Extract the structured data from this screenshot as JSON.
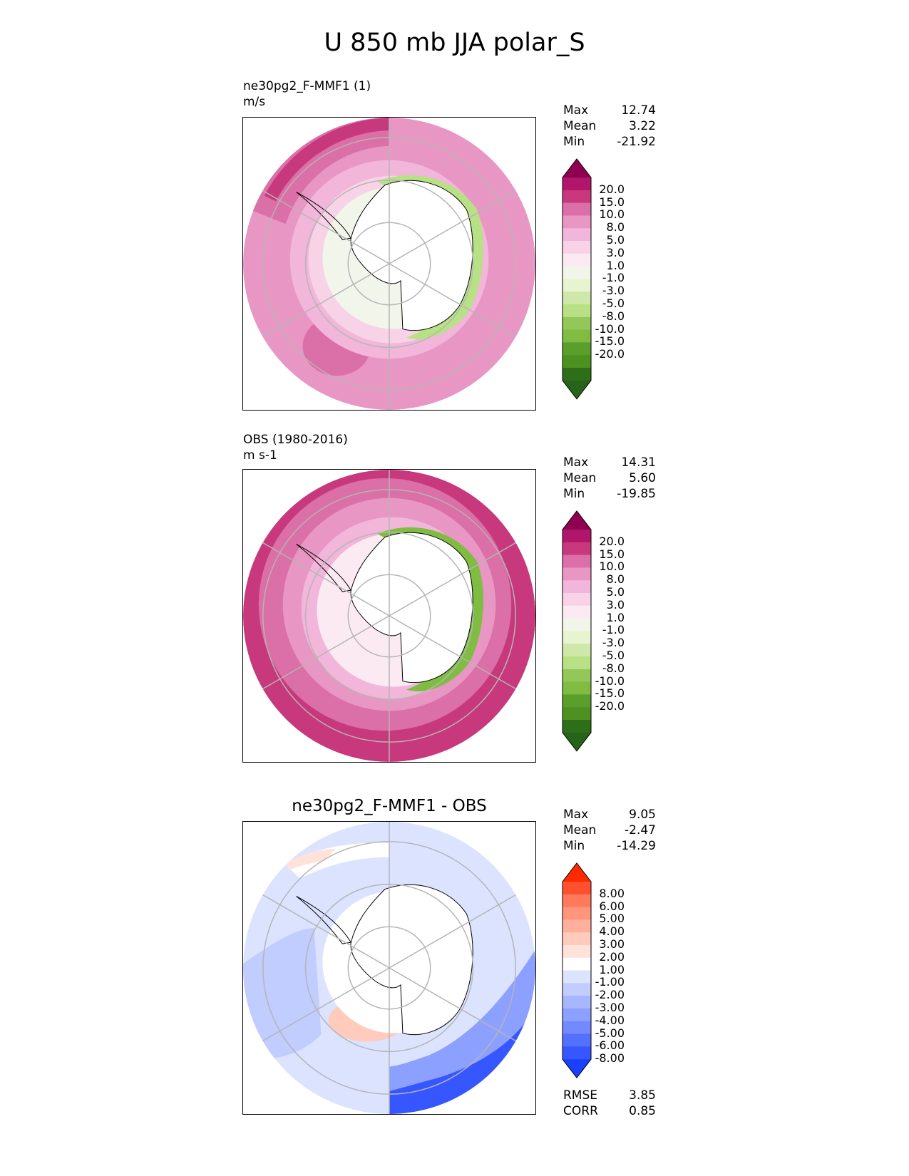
{
  "figure_title": "U 850 mb JJA polar_S",
  "panels": {
    "test": {
      "name": "ne30pg2_F-MMF1 (1)",
      "units": "m/s",
      "stats": {
        "max_label": "Max",
        "max": "12.74",
        "mean_label": "Mean",
        "mean": "3.22",
        "min_label": "Min",
        "min": "-21.92"
      }
    },
    "ref": {
      "name": "OBS (1980-2016)",
      "units": "m s-1",
      "stats": {
        "max_label": "Max",
        "max": "14.31",
        "mean_label": "Mean",
        "mean": "5.60",
        "min_label": "Min",
        "min": "-19.85"
      }
    },
    "diff": {
      "title": "ne30pg2_F-MMF1 - OBS",
      "stats": {
        "max_label": "Max",
        "max": "9.05",
        "mean_label": "Mean",
        "mean": "-2.47",
        "min_label": "Min",
        "min": "-14.29"
      },
      "rmse_label": "RMSE",
      "rmse": "3.85",
      "corr_label": "CORR",
      "corr": "0.85"
    }
  },
  "colorbars": {
    "field": {
      "levels": [
        "20.0",
        "15.0",
        "10.0",
        "8.0",
        "5.0",
        "3.0",
        "1.0",
        "-1.0",
        "-3.0",
        "-5.0",
        "-8.0",
        "-10.0",
        "-15.0",
        "-20.0"
      ],
      "colors": [
        "#8e0152",
        "#b0176b",
        "#c8387d",
        "#db6fa7",
        "#e897c4",
        "#f1b6da",
        "#f8d3e7",
        "#fbeaf2",
        "#f2f5ea",
        "#e6f5d0",
        "#cfe8a9",
        "#b8e186",
        "#94c75a",
        "#7fbc41",
        "#5a9e2b",
        "#4d9221",
        "#2f6e18",
        "#276419"
      ]
    },
    "diff": {
      "levels": [
        "8.00",
        "6.00",
        "5.00",
        "4.00",
        "3.00",
        "2.00",
        "1.00",
        "-1.00",
        "-2.00",
        "-3.00",
        "-4.00",
        "-5.00",
        "-6.00",
        "-8.00"
      ],
      "colors": [
        "#ff2a00",
        "#ff5030",
        "#ff7a5a",
        "#ff957b",
        "#ffb09c",
        "#ffcbbd",
        "#ffe3da",
        "#ffffff",
        "#dbe3ff",
        "#c1ccff",
        "#a7b6ff",
        "#8ca0ff",
        "#7289ff",
        "#5470ff",
        "#3657ff",
        "#1a40ff"
      ]
    }
  }
}
